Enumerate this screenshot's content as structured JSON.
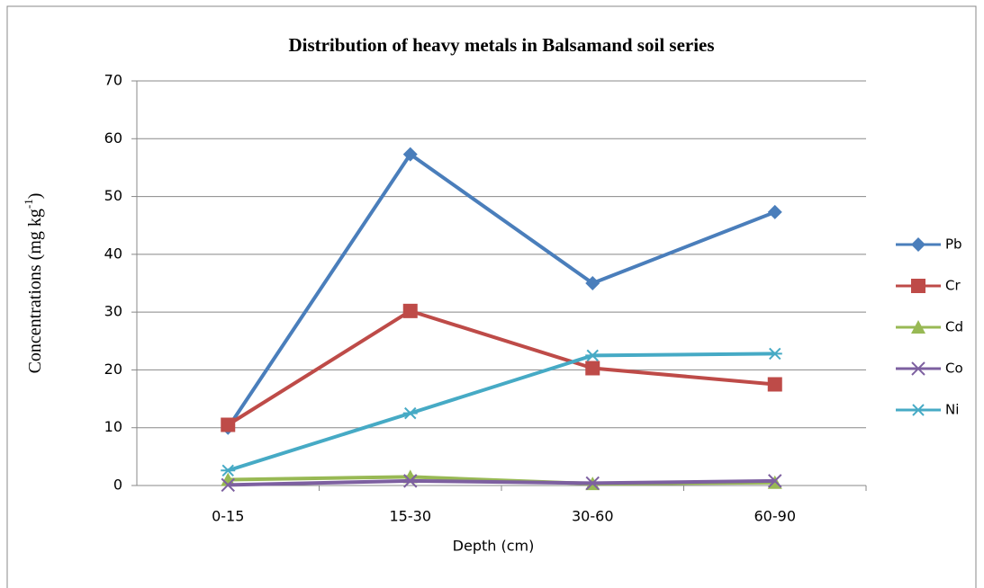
{
  "chart_data": {
    "type": "line",
    "title": "Distribution of heavy metals in Balsamand soil series",
    "ylabel": "Concentrations (mg kg",
    "ylabel_sup": "-1",
    "ylabel_end": ")",
    "xlabel": "Depth (cm)",
    "categories": [
      "0-15",
      "15-30",
      "30-60",
      "60-90"
    ],
    "series": [
      {
        "name": "Pb",
        "color": "#4a7ebb",
        "marker": "diamond",
        "values": [
          10,
          57.3,
          35,
          47.3
        ]
      },
      {
        "name": "Cr",
        "color": "#be4b48",
        "marker": "square",
        "values": [
          10.5,
          30.2,
          20.3,
          17.5
        ]
      },
      {
        "name": "Cd",
        "color": "#98b954",
        "marker": "triangle",
        "values": [
          1,
          1.5,
          0.3,
          0.5
        ]
      },
      {
        "name": "Co",
        "color": "#7d60a0",
        "marker": "x",
        "values": [
          0.1,
          0.8,
          0.4,
          0.8
        ]
      },
      {
        "name": "Ni",
        "color": "#46aac5",
        "marker": "star",
        "values": [
          2.6,
          12.5,
          22.5,
          22.8
        ]
      }
    ],
    "ylim": [
      0,
      70
    ],
    "yticks": [
      0,
      10,
      20,
      30,
      40,
      50,
      60,
      70
    ],
    "grid": true,
    "legend": "right"
  }
}
